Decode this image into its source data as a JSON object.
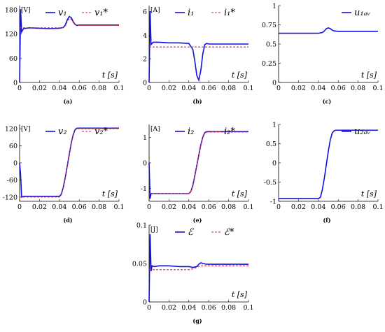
{
  "panels": [
    {
      "id": "a",
      "caption": "(a)",
      "unit": "[V]",
      "xlabel": "t [s]",
      "xlim": [
        0,
        0.1
      ],
      "ylim": [
        0,
        190
      ],
      "xticks": [
        "0",
        "0.02",
        "0.04",
        "0.06",
        "0.08",
        "0.1"
      ],
      "yticks": [
        "0",
        "60",
        "120",
        "180"
      ],
      "chart_data": {
        "type": "line",
        "x": [
          0,
          0.001,
          0.002,
          0.004,
          0.01,
          0.02,
          0.03,
          0.04,
          0.044,
          0.046,
          0.048,
          0.05,
          0.052,
          0.054,
          0.056,
          0.058,
          0.06,
          0.07,
          0.08,
          0.09,
          0.1
        ],
        "series": [
          {
            "name": "v1",
            "legend": "v₁",
            "color": "#1010e0",
            "style": "solid",
            "values": [
              0,
              180,
              125,
              133,
              135,
              134,
              133,
              134,
              136,
              142,
              155,
              163,
              160,
              150,
              143,
              141,
              142,
              142,
              142,
              142,
              142
            ]
          },
          {
            "name": "v1*",
            "legend": "v₁*",
            "color": "#e02020",
            "style": "dashed",
            "values": [
              135,
              135,
              135,
              135,
              135,
              135,
              135,
              135,
              135,
              140,
              150,
              158,
              156,
              148,
              142,
              141,
              141,
              141,
              141,
              141,
              141
            ]
          }
        ]
      }
    },
    {
      "id": "b",
      "caption": "(b)",
      "unit": "[A]",
      "xlabel": "t [s]",
      "xlim": [
        0,
        0.1
      ],
      "ylim": [
        0,
        6.5
      ],
      "xticks": [
        "0",
        "0.02",
        "0.04",
        "0.06",
        "0.08",
        "0.1"
      ],
      "yticks": [
        "0",
        "2",
        "4",
        "6"
      ],
      "chart_data": {
        "type": "line",
        "x": [
          0,
          0.001,
          0.002,
          0.004,
          0.01,
          0.02,
          0.03,
          0.04,
          0.044,
          0.046,
          0.048,
          0.05,
          0.052,
          0.054,
          0.056,
          0.058,
          0.06,
          0.07,
          0.08,
          0.09,
          0.1
        ],
        "series": [
          {
            "name": "i1",
            "legend": "i₁",
            "color": "#1010e0",
            "style": "solid",
            "values": [
              0,
              6,
              3.2,
              3.4,
              3.4,
              3.35,
              3.35,
              3.3,
              2.8,
              1.8,
              0.6,
              0.2,
              1.0,
              2.4,
              3.2,
              3.3,
              3.25,
              3.25,
              3.25,
              3.25,
              3.25
            ]
          },
          {
            "name": "i1*",
            "legend": "i₁*",
            "color": "#e02020",
            "style": "dashed",
            "values": [
              3.0,
              3.0,
              3.0,
              3.0,
              3.0,
              3.0,
              3.0,
              3.0,
              3.0,
              3.0,
              3.0,
              3.0,
              3.0,
              3.0,
              3.0,
              3.0,
              3.0,
              3.0,
              3.0,
              3.0,
              3.0
            ]
          }
        ]
      }
    },
    {
      "id": "c",
      "caption": "(c)",
      "unit": "",
      "xlabel": "t [s]",
      "xlim": [
        0,
        0.1
      ],
      "ylim": [
        0,
        1
      ],
      "xticks": [
        "0",
        "0.02",
        "0.04",
        "0.06",
        "0.08",
        "0.1"
      ],
      "yticks": [
        "0",
        "0.25",
        "0.5",
        "0.75",
        "1"
      ],
      "chart_data": {
        "type": "line",
        "x": [
          0,
          0.01,
          0.02,
          0.03,
          0.04,
          0.044,
          0.046,
          0.048,
          0.05,
          0.052,
          0.054,
          0.056,
          0.06,
          0.07,
          0.08,
          0.09,
          0.1
        ],
        "series": [
          {
            "name": "u1av",
            "legend": "u₁ₐᵥ",
            "color": "#1010e0",
            "style": "solid",
            "values": [
              0.64,
              0.64,
              0.64,
              0.64,
              0.64,
              0.65,
              0.67,
              0.7,
              0.71,
              0.7,
              0.68,
              0.67,
              0.665,
              0.665,
              0.665,
              0.665,
              0.665
            ]
          }
        ]
      }
    },
    {
      "id": "d",
      "caption": "(d)",
      "unit": "[V]",
      "xlabel": "t [s]",
      "xlim": [
        0,
        0.1
      ],
      "ylim": [
        -135,
        135
      ],
      "xticks": [
        "0",
        "0.02",
        "0.04",
        "0.06",
        "0.08",
        "0.1"
      ],
      "yticks": [
        "-120",
        "-60",
        "0",
        "60",
        "120"
      ],
      "chart_data": {
        "type": "line",
        "x": [
          0,
          0.001,
          0.002,
          0.004,
          0.01,
          0.02,
          0.03,
          0.04,
          0.042,
          0.044,
          0.046,
          0.048,
          0.05,
          0.052,
          0.054,
          0.056,
          0.058,
          0.06,
          0.07,
          0.08,
          0.09,
          0.1
        ],
        "series": [
          {
            "name": "v2",
            "legend": "v₂",
            "color": "#1010e0",
            "style": "solid",
            "values": [
              0,
              -40,
              -120,
              -118,
              -118,
              -118,
              -118,
              -118,
              -110,
              -85,
              -50,
              -10,
              30,
              70,
              100,
              118,
              122,
              122,
              122,
              122,
              122,
              122
            ]
          },
          {
            "name": "v2*",
            "legend": "v₂*",
            "color": "#e02020",
            "style": "dashed",
            "values": [
              -120,
              -120,
              -120,
              -120,
              -120,
              -120,
              -120,
              -120,
              -112,
              -88,
              -52,
              -12,
              28,
              68,
              98,
              116,
              120,
              120,
              120,
              120,
              120,
              120
            ]
          }
        ]
      }
    },
    {
      "id": "e",
      "caption": "(e)",
      "unit": "[A]",
      "xlabel": "t [s]",
      "xlim": [
        0,
        0.1
      ],
      "ylim": [
        -1.5,
        1.5
      ],
      "xticks": [
        "0",
        "0.02",
        "0.04",
        "0.06",
        "0.08",
        "0.1"
      ],
      "yticks": [
        "-1",
        "0",
        "1"
      ],
      "chart_data": {
        "type": "line",
        "x": [
          0,
          0.001,
          0.002,
          0.004,
          0.01,
          0.02,
          0.03,
          0.04,
          0.042,
          0.044,
          0.046,
          0.048,
          0.05,
          0.052,
          0.054,
          0.056,
          0.058,
          0.06,
          0.07,
          0.08,
          0.09,
          0.1
        ],
        "series": [
          {
            "name": "i2",
            "legend": "i₂",
            "color": "#1010e0",
            "style": "solid",
            "values": [
              0,
              -1.4,
              -1.2,
              -1.2,
              -1.2,
              -1.2,
              -1.2,
              -1.2,
              -1.12,
              -0.88,
              -0.5,
              -0.1,
              0.3,
              0.7,
              1.0,
              1.18,
              1.22,
              1.22,
              1.22,
              1.22,
              1.22,
              1.22
            ]
          },
          {
            "name": "i2*",
            "legend": "i₂*",
            "color": "#e02020",
            "style": "dashed",
            "values": [
              -1.2,
              -1.2,
              -1.2,
              -1.2,
              -1.2,
              -1.2,
              -1.2,
              -1.2,
              -1.12,
              -0.9,
              -0.52,
              -0.12,
              0.28,
              0.68,
              0.98,
              1.16,
              1.2,
              1.2,
              1.2,
              1.2,
              1.2,
              1.2
            ]
          }
        ]
      }
    },
    {
      "id": "f",
      "caption": "(f)",
      "unit": "",
      "xlabel": "t [s]",
      "xlim": [
        0,
        0.1
      ],
      "ylim": [
        -1,
        1
      ],
      "xticks": [
        "0",
        "0.02",
        "0.04",
        "0.06",
        "0.08",
        "0.1"
      ],
      "yticks": [
        "-1",
        "-0.5",
        "0",
        "0.5",
        "1"
      ],
      "chart_data": {
        "type": "line",
        "x": [
          0,
          0.01,
          0.02,
          0.03,
          0.04,
          0.042,
          0.044,
          0.046,
          0.048,
          0.05,
          0.052,
          0.054,
          0.056,
          0.058,
          0.06,
          0.07,
          0.08,
          0.09,
          0.1
        ],
        "series": [
          {
            "name": "u2av",
            "legend": "u₂ₐᵥ",
            "color": "#1010e0",
            "style": "solid",
            "values": [
              -0.93,
              -0.93,
              -0.93,
              -0.93,
              -0.93,
              -0.9,
              -0.7,
              -0.4,
              -0.05,
              0.3,
              0.6,
              0.78,
              0.84,
              0.85,
              0.85,
              0.85,
              0.85,
              0.85,
              0.85
            ]
          }
        ]
      }
    },
    {
      "id": "g",
      "caption": "(g)",
      "unit": "[J]",
      "xlabel": "t [s]",
      "xlim": [
        0,
        0.1
      ],
      "ylim": [
        0,
        0.1
      ],
      "xticks": [
        "0",
        "0.02",
        "0.04",
        "0.06",
        "0.08",
        "0.1"
      ],
      "yticks": [
        "0",
        "0.05",
        "0.1"
      ],
      "chart_data": {
        "type": "line",
        "x": [
          0,
          0.001,
          0.002,
          0.003,
          0.005,
          0.01,
          0.02,
          0.03,
          0.04,
          0.044,
          0.048,
          0.05,
          0.052,
          0.054,
          0.058,
          0.06,
          0.07,
          0.08,
          0.09,
          0.1
        ],
        "series": [
          {
            "name": "E",
            "legend": "ℰ",
            "color": "#1010e0",
            "style": "solid",
            "values": [
              0,
              0.088,
              0.04,
              0.047,
              0.046,
              0.047,
              0.047,
              0.046,
              0.046,
              0.045,
              0.046,
              0.049,
              0.051,
              0.05,
              0.049,
              0.049,
              0.049,
              0.049,
              0.049,
              0.049
            ]
          },
          {
            "name": "E*",
            "legend": "ℰ*",
            "color": "#e02020",
            "style": "dashed",
            "values": [
              0.042,
              0.042,
              0.042,
              0.042,
              0.042,
              0.042,
              0.042,
              0.042,
              0.042,
              0.043,
              0.045,
              0.046,
              0.047,
              0.047,
              0.047,
              0.047,
              0.047,
              0.047,
              0.047,
              0.047
            ]
          }
        ]
      }
    }
  ]
}
